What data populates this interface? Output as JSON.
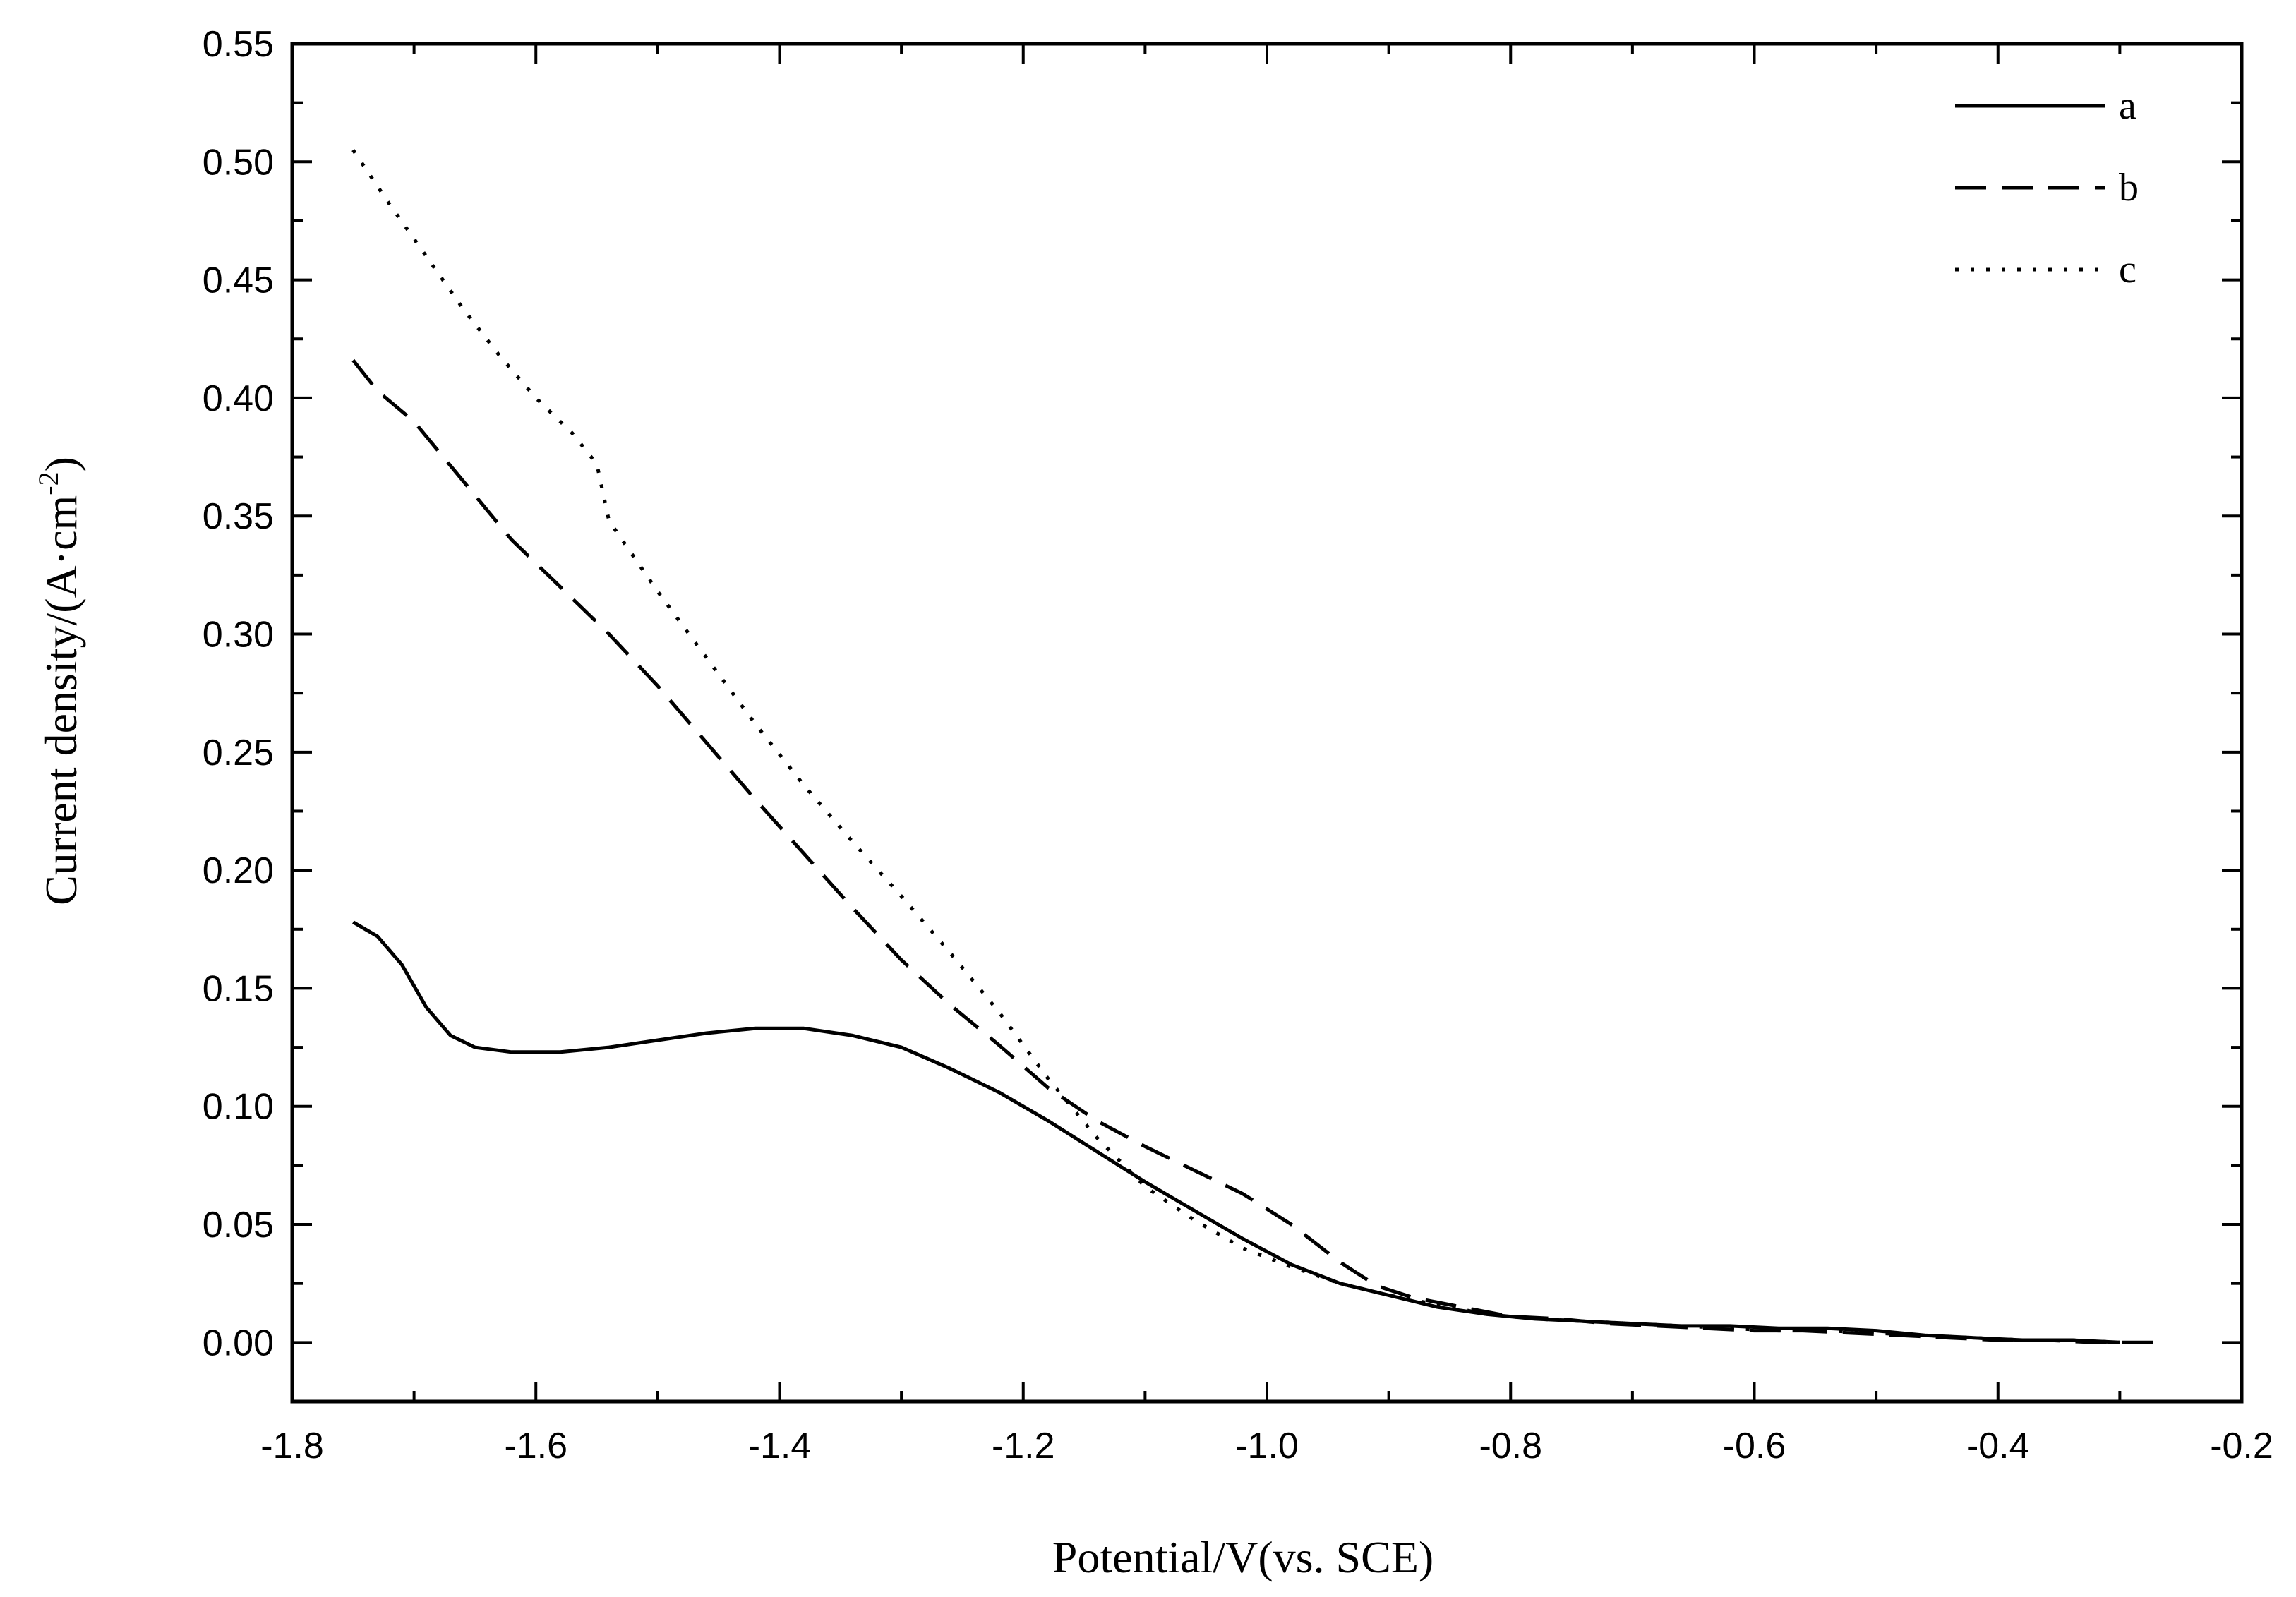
{
  "chart_data": {
    "type": "line",
    "title": "",
    "xlabel": "Potential/V(vs. SCE)",
    "ylabel": "Current density/(A·cm",
    "ylabel_sup": "-2",
    "ylabel_tail": ")",
    "xlim": [
      -1.8,
      -0.2
    ],
    "ylim": [
      -0.025,
      0.55
    ],
    "grid": false,
    "legend_position": "top-right",
    "x_ticks": [
      -1.8,
      -1.6,
      -1.4,
      -1.2,
      -1.0,
      -0.8,
      -0.6,
      -0.4,
      -0.2
    ],
    "x_tick_labels": [
      "-1.8",
      "-1.6",
      "-1.4",
      "-1.2",
      "-1.0",
      "-0.8",
      "-0.6",
      "-0.4",
      "-0.2"
    ],
    "y_ticks": [
      0.0,
      0.05,
      0.1,
      0.15,
      0.2,
      0.25,
      0.3,
      0.35,
      0.4,
      0.45,
      0.5,
      0.55
    ],
    "y_tick_labels": [
      "0.00",
      "0.05",
      "0.10",
      "0.15",
      "0.20",
      "0.25",
      "0.30",
      "0.35",
      "0.40",
      "0.45",
      "0.50",
      "0.55"
    ],
    "series": [
      {
        "name": "a",
        "style": "solid",
        "points": [
          [
            -1.75,
            0.178
          ],
          [
            -1.73,
            0.172
          ],
          [
            -1.71,
            0.16
          ],
          [
            -1.69,
            0.142
          ],
          [
            -1.67,
            0.13
          ],
          [
            -1.65,
            0.125
          ],
          [
            -1.62,
            0.123
          ],
          [
            -1.58,
            0.123
          ],
          [
            -1.54,
            0.125
          ],
          [
            -1.5,
            0.128
          ],
          [
            -1.46,
            0.131
          ],
          [
            -1.42,
            0.133
          ],
          [
            -1.38,
            0.133
          ],
          [
            -1.34,
            0.13
          ],
          [
            -1.3,
            0.125
          ],
          [
            -1.26,
            0.116
          ],
          [
            -1.22,
            0.106
          ],
          [
            -1.18,
            0.094
          ],
          [
            -1.14,
            0.081
          ],
          [
            -1.1,
            0.068
          ],
          [
            -1.06,
            0.056
          ],
          [
            -1.02,
            0.044
          ],
          [
            -0.98,
            0.033
          ],
          [
            -0.94,
            0.025
          ],
          [
            -0.9,
            0.02
          ],
          [
            -0.86,
            0.015
          ],
          [
            -0.82,
            0.012
          ],
          [
            -0.78,
            0.01
          ],
          [
            -0.74,
            0.009
          ],
          [
            -0.7,
            0.008
          ],
          [
            -0.66,
            0.007
          ],
          [
            -0.62,
            0.007
          ],
          [
            -0.58,
            0.006
          ],
          [
            -0.54,
            0.006
          ],
          [
            -0.5,
            0.005
          ],
          [
            -0.46,
            0.003
          ],
          [
            -0.42,
            0.002
          ],
          [
            -0.38,
            0.001
          ],
          [
            -0.34,
            0.001
          ],
          [
            -0.3,
            0.0
          ]
        ]
      },
      {
        "name": "b",
        "style": "dashed",
        "points": [
          [
            -1.75,
            0.416
          ],
          [
            -1.73,
            0.403
          ],
          [
            -1.7,
            0.39
          ],
          [
            -1.66,
            0.365
          ],
          [
            -1.62,
            0.34
          ],
          [
            -1.58,
            0.32
          ],
          [
            -1.54,
            0.3
          ],
          [
            -1.5,
            0.278
          ],
          [
            -1.46,
            0.254
          ],
          [
            -1.42,
            0.23
          ],
          [
            -1.38,
            0.207
          ],
          [
            -1.34,
            0.184
          ],
          [
            -1.3,
            0.162
          ],
          [
            -1.26,
            0.143
          ],
          [
            -1.22,
            0.126
          ],
          [
            -1.18,
            0.108
          ],
          [
            -1.14,
            0.094
          ],
          [
            -1.1,
            0.083
          ],
          [
            -1.06,
            0.073
          ],
          [
            -1.02,
            0.063
          ],
          [
            -0.98,
            0.05
          ],
          [
            -0.94,
            0.034
          ],
          [
            -0.91,
            0.024
          ],
          [
            -0.88,
            0.019
          ],
          [
            -0.84,
            0.015
          ],
          [
            -0.8,
            0.011
          ],
          [
            -0.76,
            0.01
          ],
          [
            -0.72,
            0.008
          ],
          [
            -0.68,
            0.007
          ],
          [
            -0.64,
            0.006
          ],
          [
            -0.6,
            0.005
          ],
          [
            -0.56,
            0.005
          ],
          [
            -0.52,
            0.004
          ],
          [
            -0.48,
            0.003
          ],
          [
            -0.44,
            0.002
          ],
          [
            -0.4,
            0.001
          ],
          [
            -0.36,
            0.001
          ],
          [
            -0.32,
            0.0
          ],
          [
            -0.28,
            0.0
          ],
          [
            -0.26,
            0.0
          ]
        ]
      },
      {
        "name": "c",
        "style": "dotted",
        "points": [
          [
            -1.75,
            0.505
          ],
          [
            -1.72,
            0.482
          ],
          [
            -1.69,
            0.46
          ],
          [
            -1.66,
            0.438
          ],
          [
            -1.63,
            0.418
          ],
          [
            -1.6,
            0.4
          ],
          [
            -1.57,
            0.385
          ],
          [
            -1.55,
            0.372
          ],
          [
            -1.54,
            0.348
          ],
          [
            -1.5,
            0.318
          ],
          [
            -1.46,
            0.29
          ],
          [
            -1.42,
            0.262
          ],
          [
            -1.38,
            0.236
          ],
          [
            -1.34,
            0.212
          ],
          [
            -1.3,
            0.189
          ],
          [
            -1.26,
            0.165
          ],
          [
            -1.22,
            0.14
          ],
          [
            -1.18,
            0.112
          ],
          [
            -1.14,
            0.087
          ],
          [
            -1.1,
            0.066
          ],
          [
            -1.06,
            0.052
          ],
          [
            -1.02,
            0.04
          ],
          [
            -0.98,
            0.032
          ],
          [
            -0.94,
            0.025
          ],
          [
            -0.9,
            0.02
          ],
          [
            -0.86,
            0.016
          ],
          [
            -0.82,
            0.012
          ],
          [
            -0.78,
            0.01
          ],
          [
            -0.74,
            0.009
          ],
          [
            -0.7,
            0.008
          ],
          [
            -0.66,
            0.007
          ],
          [
            -0.62,
            0.006
          ],
          [
            -0.58,
            0.005
          ],
          [
            -0.54,
            0.005
          ],
          [
            -0.5,
            0.004
          ],
          [
            -0.46,
            0.003
          ],
          [
            -0.42,
            0.002
          ],
          [
            -0.38,
            0.001
          ],
          [
            -0.34,
            0.001
          ],
          [
            -0.3,
            0.0
          ]
        ]
      }
    ]
  }
}
